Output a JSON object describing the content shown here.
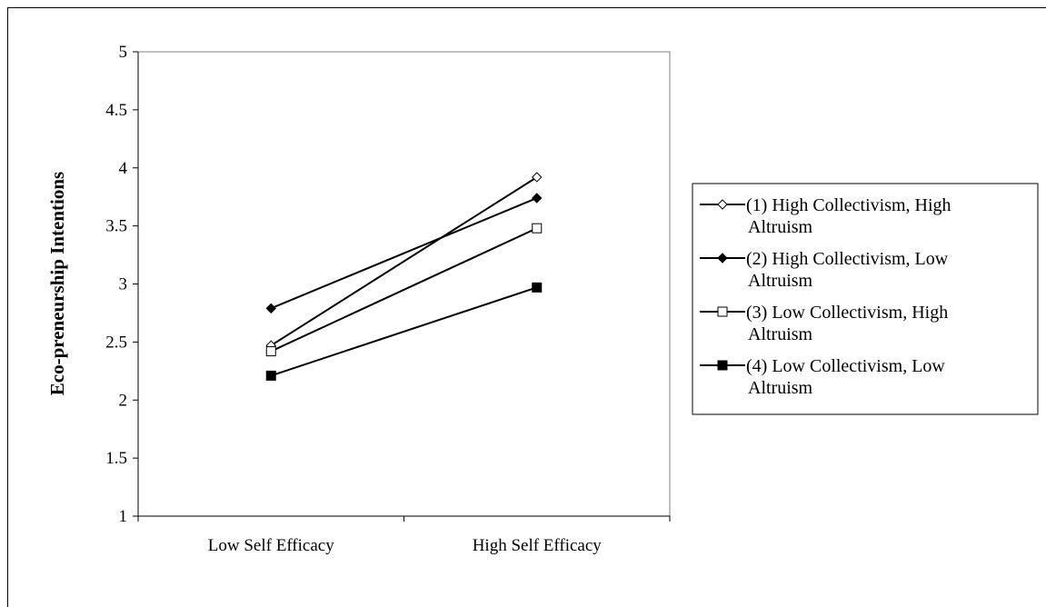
{
  "chart_data": {
    "type": "line",
    "title": "",
    "xlabel": "",
    "ylabel": "Eco-preneurship Intentions",
    "categories": [
      "Low Self Efficacy",
      "High Self Efficacy"
    ],
    "ylim": [
      1,
      5
    ],
    "yticks": [
      "1",
      "1.5",
      "2",
      "2.5",
      "3",
      "3.5",
      "4",
      "4.5",
      "5"
    ],
    "grid": false,
    "legend_position": "right",
    "series": [
      {
        "name": "(1) High Collectivism, High Altruism",
        "label_lines": [
          "(1) High Collectivism, High",
          "Altruism"
        ],
        "marker": "diamond-open",
        "values": [
          2.47,
          3.92
        ]
      },
      {
        "name": "(2) High Collectivism, Low Altruism",
        "label_lines": [
          "(2) High Collectivism, Low",
          "Altruism"
        ],
        "marker": "diamond-filled",
        "values": [
          2.79,
          3.74
        ]
      },
      {
        "name": "(3) Low Collectivism, High Altruism",
        "label_lines": [
          "(3) Low Collectivism, High",
          "Altruism"
        ],
        "marker": "square-open",
        "values": [
          2.42,
          3.48
        ]
      },
      {
        "name": "(4) Low Collectivism, Low Altruism",
        "label_lines": [
          "(4) Low Collectivism, Low",
          "Altruism"
        ],
        "marker": "square-filled",
        "values": [
          2.21,
          2.97
        ]
      }
    ],
    "colors": {
      "line": "#000000",
      "background": "#ffffff"
    }
  }
}
